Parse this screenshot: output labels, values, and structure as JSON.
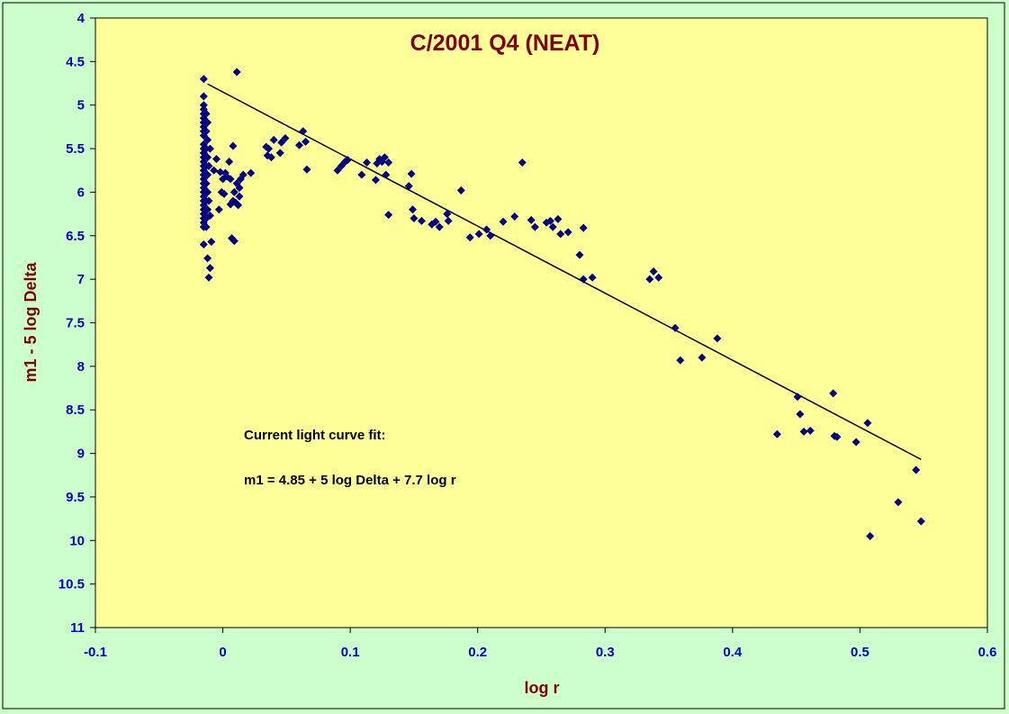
{
  "colors": {
    "page_background": "#ccffcc",
    "plot_background": "#ffff99",
    "marker": "#000080",
    "fit_line": "#000000",
    "title": "#800000",
    "tick_labels": "#0000cc"
  },
  "chart_data": {
    "type": "scatter",
    "title": "C/2001 Q4 (NEAT)",
    "xlabel": "log r",
    "ylabel": "m1 - 5 log Delta",
    "xlim": [
      -0.1,
      0.6
    ],
    "ylim": [
      4,
      11
    ],
    "y_inverted": true,
    "grid": false,
    "legend": "none",
    "x_ticks": [
      "-0.1",
      "0",
      "0.1",
      "0.2",
      "0.3",
      "0.4",
      "0.5",
      "0.6"
    ],
    "y_ticks": [
      "4",
      "4.5",
      "5",
      "5.5",
      "6",
      "6.5",
      "7",
      "7.5",
      "8",
      "8.5",
      "9",
      "9.5",
      "10",
      "10.5",
      "11"
    ],
    "marker": "diamond",
    "annotations": [
      "Current light curve fit:",
      "m1 = 4.85 + 5 log Delta + 7.7 log r"
    ],
    "fit_line": {
      "intercept": 4.85,
      "slope": 7.7,
      "x_range": [
        -0.012,
        0.548
      ]
    },
    "series": [
      {
        "points": [
          [
            -0.015,
            4.7
          ],
          [
            -0.015,
            4.9
          ],
          [
            -0.015,
            5.0
          ],
          [
            -0.015,
            5.05
          ],
          [
            -0.015,
            5.1
          ],
          [
            -0.015,
            5.15
          ],
          [
            -0.015,
            5.2
          ],
          [
            -0.015,
            5.25
          ],
          [
            -0.015,
            5.3
          ],
          [
            -0.015,
            5.35
          ],
          [
            -0.015,
            5.45
          ],
          [
            -0.015,
            5.5
          ],
          [
            -0.015,
            5.55
          ],
          [
            -0.015,
            5.6
          ],
          [
            -0.015,
            5.65
          ],
          [
            -0.015,
            5.7
          ],
          [
            -0.015,
            5.75
          ],
          [
            -0.015,
            5.8
          ],
          [
            -0.015,
            5.85
          ],
          [
            -0.015,
            5.9
          ],
          [
            -0.015,
            5.95
          ],
          [
            -0.015,
            6.0
          ],
          [
            -0.015,
            6.05
          ],
          [
            -0.015,
            6.1
          ],
          [
            -0.015,
            6.15
          ],
          [
            -0.015,
            6.2
          ],
          [
            -0.015,
            6.25
          ],
          [
            -0.015,
            6.3
          ],
          [
            -0.015,
            6.35
          ],
          [
            -0.015,
            6.4
          ],
          [
            -0.015,
            6.6
          ],
          [
            -0.013,
            5.1
          ],
          [
            -0.013,
            5.3
          ],
          [
            -0.013,
            5.5
          ],
          [
            -0.013,
            5.7
          ],
          [
            -0.013,
            5.9
          ],
          [
            -0.013,
            6.1
          ],
          [
            -0.013,
            6.3
          ],
          [
            -0.013,
            6.4
          ],
          [
            -0.012,
            5.2
          ],
          [
            -0.012,
            5.4
          ],
          [
            -0.012,
            5.6
          ],
          [
            -0.012,
            5.8
          ],
          [
            -0.012,
            6.0
          ],
          [
            -0.012,
            6.2
          ],
          [
            -0.012,
            6.76
          ],
          [
            -0.011,
            5.7
          ],
          [
            -0.011,
            6.1
          ],
          [
            -0.011,
            6.98
          ],
          [
            -0.01,
            5.5
          ],
          [
            -0.01,
            6.27
          ],
          [
            -0.01,
            6.87
          ],
          [
            -0.009,
            6.57
          ],
          [
            -0.007,
            5.75
          ],
          [
            -0.005,
            5.62
          ],
          [
            -0.003,
            6.2
          ],
          [
            -0.002,
            5.77
          ],
          [
            -0.001,
            6.0
          ],
          [
            0.0,
            5.85
          ],
          [
            0.001,
            6.02
          ],
          [
            0.002,
            5.78
          ],
          [
            0.003,
            5.82
          ],
          [
            0.005,
            5.65
          ],
          [
            0.006,
            5.85
          ],
          [
            0.006,
            6.14
          ],
          [
            0.007,
            6.53
          ],
          [
            0.008,
            5.47
          ],
          [
            0.008,
            6.1
          ],
          [
            0.009,
            6.56
          ],
          [
            0.009,
            6.0
          ],
          [
            0.01,
            6.12
          ],
          [
            0.011,
            5.9
          ],
          [
            0.011,
            4.62
          ],
          [
            0.012,
            6.15
          ],
          [
            0.013,
            6.05
          ],
          [
            0.013,
            5.95
          ],
          [
            0.014,
            5.85
          ],
          [
            0.016,
            5.8
          ],
          [
            0.022,
            5.78
          ],
          [
            0.034,
            5.48
          ],
          [
            0.035,
            5.58
          ],
          [
            0.036,
            5.5
          ],
          [
            0.038,
            5.6
          ],
          [
            0.04,
            5.4
          ],
          [
            0.045,
            5.55
          ],
          [
            0.046,
            5.43
          ],
          [
            0.049,
            5.38
          ],
          [
            0.06,
            5.46
          ],
          [
            0.063,
            5.3
          ],
          [
            0.065,
            5.42
          ],
          [
            0.066,
            5.74
          ],
          [
            0.09,
            5.75
          ],
          [
            0.093,
            5.7
          ],
          [
            0.096,
            5.65
          ],
          [
            0.098,
            5.63
          ],
          [
            0.109,
            5.8
          ],
          [
            0.113,
            5.66
          ],
          [
            0.12,
            5.86
          ],
          [
            0.121,
            5.67
          ],
          [
            0.123,
            5.62
          ],
          [
            0.125,
            5.65
          ],
          [
            0.127,
            5.6
          ],
          [
            0.128,
            5.8
          ],
          [
            0.13,
            5.66
          ],
          [
            0.13,
            6.26
          ],
          [
            0.146,
            5.93
          ],
          [
            0.148,
            5.79
          ],
          [
            0.149,
            6.2
          ],
          [
            0.15,
            6.3
          ],
          [
            0.156,
            6.33
          ],
          [
            0.164,
            6.37
          ],
          [
            0.167,
            6.34
          ],
          [
            0.17,
            6.4
          ],
          [
            0.176,
            6.25
          ],
          [
            0.177,
            6.33
          ],
          [
            0.187,
            5.98
          ],
          [
            0.194,
            6.52
          ],
          [
            0.201,
            6.48
          ],
          [
            0.207,
            6.43
          ],
          [
            0.21,
            6.5
          ],
          [
            0.22,
            6.34
          ],
          [
            0.229,
            6.28
          ],
          [
            0.235,
            5.66
          ],
          [
            0.242,
            6.32
          ],
          [
            0.245,
            6.4
          ],
          [
            0.254,
            6.35
          ],
          [
            0.257,
            6.33
          ],
          [
            0.259,
            6.4
          ],
          [
            0.263,
            6.31
          ],
          [
            0.265,
            6.48
          ],
          [
            0.271,
            6.46
          ],
          [
            0.28,
            6.72
          ],
          [
            0.283,
            6.41
          ],
          [
            0.283,
            7.0
          ],
          [
            0.29,
            6.98
          ],
          [
            0.335,
            7.0
          ],
          [
            0.338,
            6.91
          ],
          [
            0.342,
            6.98
          ],
          [
            0.355,
            7.56
          ],
          [
            0.359,
            7.93
          ],
          [
            0.376,
            7.9
          ],
          [
            0.388,
            7.68
          ],
          [
            0.435,
            8.78
          ],
          [
            0.451,
            8.35
          ],
          [
            0.453,
            8.55
          ],
          [
            0.456,
            8.75
          ],
          [
            0.461,
            8.74
          ],
          [
            0.479,
            8.31
          ],
          [
            0.48,
            8.8
          ],
          [
            0.482,
            8.81
          ],
          [
            0.497,
            8.87
          ],
          [
            0.506,
            8.65
          ],
          [
            0.508,
            9.95
          ],
          [
            0.53,
            9.56
          ],
          [
            0.544,
            9.19
          ],
          [
            0.548,
            9.78
          ]
        ]
      }
    ]
  }
}
